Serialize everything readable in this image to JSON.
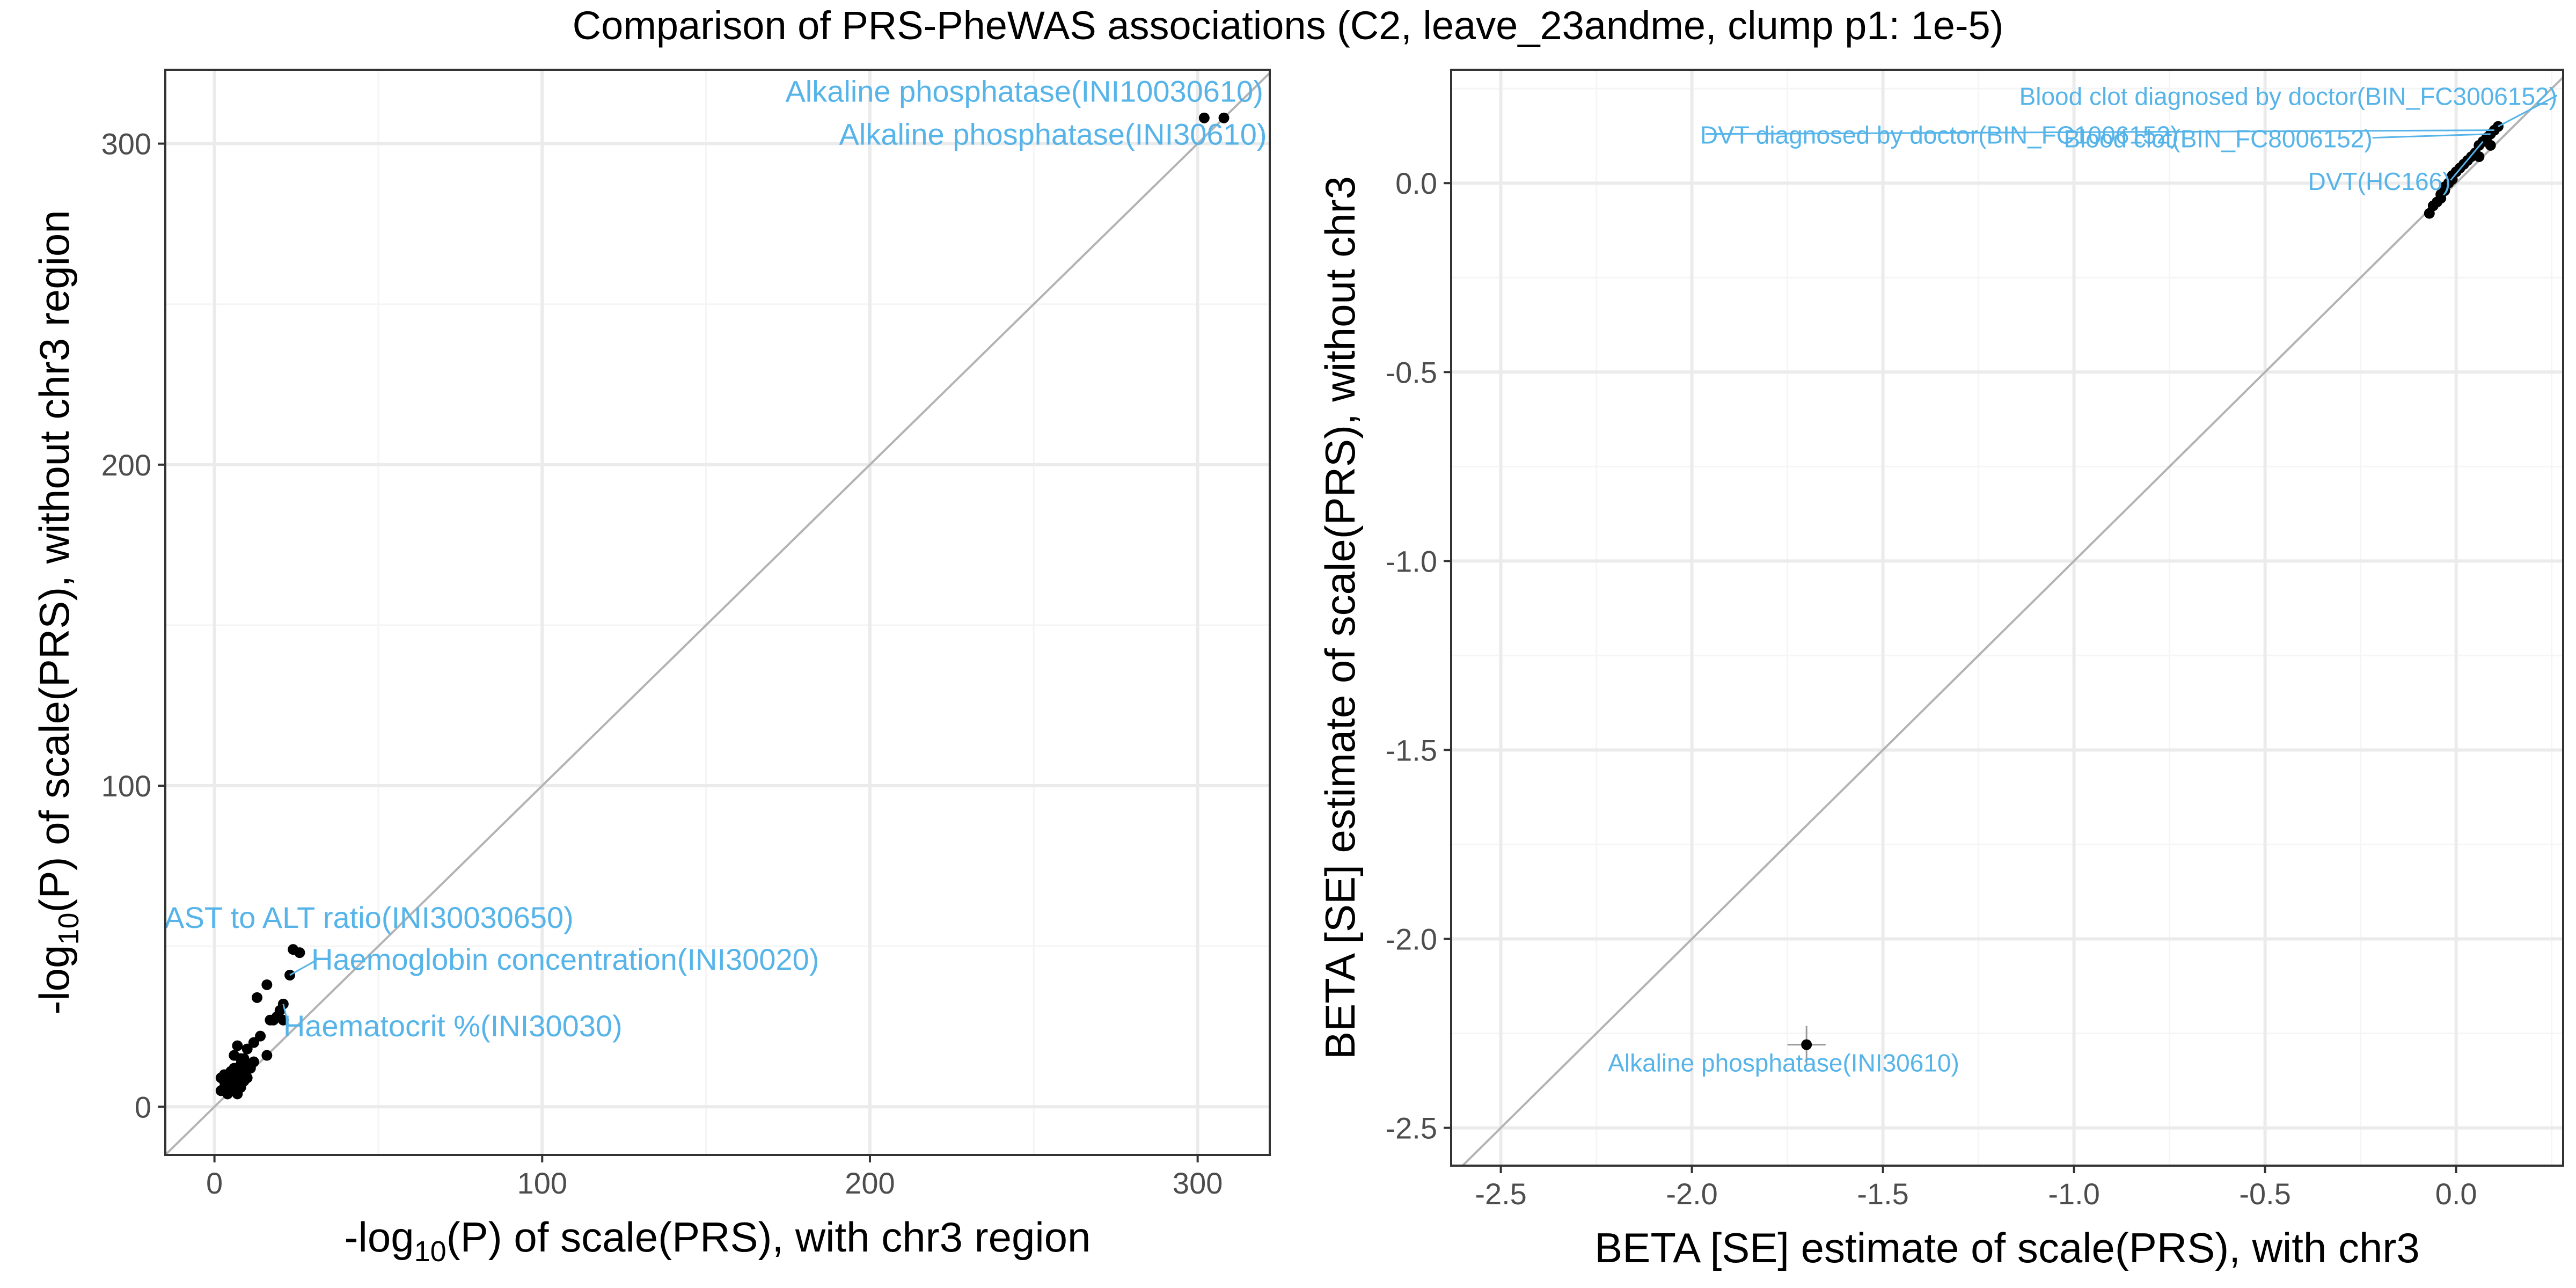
{
  "title": "Comparison of PRS-PheWAS associations (C2, leave_23andme, clump p1: 1e-5)",
  "colors": {
    "point": "#000000",
    "label": "#56b4e9",
    "diagonal": "#b3b3b3",
    "grid_major": "#ebebeb",
    "grid_minor": "#f5f5f5",
    "panel_border": "#333333"
  },
  "chart_data": [
    {
      "type": "scatter",
      "xlabel_parts": [
        "-log",
        "10",
        "(P) of scale(PRS), with chr3 region"
      ],
      "ylabel_parts": [
        "-log",
        "10",
        "(P) of scale(PRS), without chr3 region"
      ],
      "xlim": [
        -15,
        322
      ],
      "ylim": [
        -15,
        323
      ],
      "xticks": [
        0,
        100,
        200,
        300
      ],
      "yticks": [
        0,
        100,
        200,
        300
      ],
      "grid": true,
      "diagonal": true,
      "points": [
        [
          302,
          308
        ],
        [
          308,
          308
        ],
        [
          24,
          49
        ],
        [
          26,
          48
        ],
        [
          23,
          41
        ],
        [
          21,
          32
        ],
        [
          20,
          30
        ],
        [
          19,
          28
        ],
        [
          18,
          27
        ],
        [
          21,
          27
        ],
        [
          17,
          27
        ],
        [
          16,
          38
        ],
        [
          13,
          34
        ],
        [
          16,
          16
        ],
        [
          14,
          22
        ],
        [
          12,
          20
        ],
        [
          10,
          18
        ],
        [
          9,
          15
        ],
        [
          7,
          19
        ],
        [
          6,
          16
        ],
        [
          8,
          13
        ],
        [
          7,
          11
        ],
        [
          6,
          10
        ],
        [
          5,
          8
        ],
        [
          4,
          7
        ],
        [
          3,
          6
        ],
        [
          2,
          9
        ],
        [
          3,
          5
        ],
        [
          4,
          4
        ],
        [
          5,
          6
        ],
        [
          6,
          5
        ],
        [
          7,
          4
        ],
        [
          8,
          6
        ],
        [
          9,
          8
        ],
        [
          10,
          9
        ],
        [
          11,
          12
        ],
        [
          12,
          14
        ],
        [
          8,
          9
        ],
        [
          6,
          7
        ],
        [
          4,
          9
        ],
        [
          3,
          8
        ],
        [
          5,
          11
        ],
        [
          7,
          8
        ],
        [
          9,
          10
        ],
        [
          5,
          5
        ],
        [
          6,
          12
        ],
        [
          8,
          15
        ],
        [
          10,
          13
        ],
        [
          2,
          5
        ],
        [
          3,
          10
        ]
      ],
      "annotations": [
        {
          "label": "Alkaline phosphatase(INI10030610)",
          "x": 302,
          "y": 308
        },
        {
          "label": "Alkaline phosphatase(INI30610)",
          "x": 308,
          "y": 308
        },
        {
          "label": "AST to ALT ratio(INI30030650)",
          "x": 24,
          "y": 49
        },
        {
          "label": "Haemoglobin concentration(INI30020)",
          "x": 23,
          "y": 41
        },
        {
          "label": "Haematocrit %(INI30030)",
          "x": 21,
          "y": 32
        }
      ]
    },
    {
      "type": "scatter",
      "xlabel": "BETA [SE] estimate of scale(PRS), with chr3",
      "ylabel": "BETA [SE] estimate of scale(PRS), without chr3",
      "xlim": [
        -2.63,
        0.28
      ],
      "ylim": [
        -2.6,
        0.3
      ],
      "xticks": [
        -2.5,
        -2.0,
        -1.5,
        -1.0,
        -0.5,
        0.0
      ],
      "xtick_labels": [
        "-2.5",
        "-2.0",
        "-1.5",
        "-1.0",
        "-0.5",
        "0.0"
      ],
      "yticks": [
        -2.5,
        -2.0,
        -1.5,
        -1.0,
        -0.5,
        0.0
      ],
      "ytick_labels": [
        "-2.5",
        "-2.0",
        "-1.5",
        "-1.0",
        "-0.5",
        "0.0"
      ],
      "grid": true,
      "diagonal": true,
      "points": [
        [
          -1.7,
          -2.28,
          0.05,
          0.05
        ],
        [
          0.11,
          0.15,
          0,
          0
        ],
        [
          0.1,
          0.14,
          0,
          0
        ],
        [
          0.09,
          0.13,
          0,
          0
        ],
        [
          0.08,
          0.12,
          0,
          0
        ],
        [
          0.07,
          0.11,
          0,
          0
        ],
        [
          0.06,
          0.1,
          0,
          0
        ],
        [
          0.05,
          0.08,
          0,
          0
        ],
        [
          0.04,
          0.07,
          0,
          0
        ],
        [
          0.03,
          0.06,
          0,
          0
        ],
        [
          0.02,
          0.05,
          0,
          0
        ],
        [
          0.01,
          0.04,
          0,
          0
        ],
        [
          0.0,
          0.03,
          0,
          0
        ],
        [
          -0.01,
          0.02,
          0,
          0
        ],
        [
          -0.01,
          0.01,
          0,
          0
        ],
        [
          -0.02,
          0.0,
          0,
          0
        ],
        [
          -0.03,
          -0.01,
          0,
          0
        ],
        [
          -0.03,
          -0.02,
          0,
          0
        ],
        [
          -0.04,
          -0.03,
          0,
          0
        ],
        [
          -0.04,
          -0.04,
          0,
          0
        ],
        [
          -0.05,
          -0.05,
          0,
          0
        ],
        [
          -0.06,
          -0.06,
          0,
          0
        ],
        [
          -0.07,
          -0.08,
          0,
          0
        ],
        [
          0.09,
          0.1,
          0,
          0
        ],
        [
          0.06,
          0.07,
          0,
          0
        ]
      ],
      "annotations": [
        {
          "label": "Blood clot diagnosed by doctor(BIN_FC3006152)",
          "x": 0.11,
          "y": 0.15
        },
        {
          "label": "DVT diagnosed by doctor(BIN_FC1006152)",
          "x": 0.1,
          "y": 0.14
        },
        {
          "label": "Blood clot(BIN_FC8006152)",
          "x": 0.09,
          "y": 0.13
        },
        {
          "label": "DVT(HC166)",
          "x": 0.07,
          "y": 0.11
        },
        {
          "label": "Alkaline phosphatase(INI30610)",
          "x": -1.7,
          "y": -2.28
        }
      ]
    }
  ]
}
